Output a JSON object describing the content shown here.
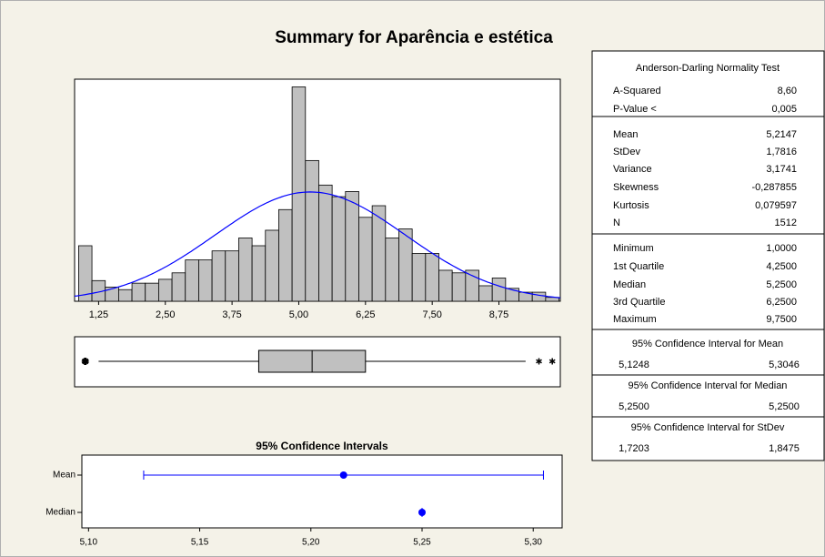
{
  "title": "Summary for Aparência e estética",
  "chart_data": [
    {
      "type": "histogram",
      "bins": [
        0.875,
        1.125,
        1.375,
        1.625,
        1.875,
        2.125,
        2.375,
        2.625,
        2.875,
        3.125,
        3.375,
        3.625,
        3.875,
        4.125,
        4.375,
        4.625,
        4.875,
        5.125,
        5.375,
        5.625,
        5.875,
        6.125,
        6.375,
        6.625,
        6.875,
        7.125,
        7.375,
        7.625,
        7.875,
        8.125,
        8.375,
        8.625,
        8.875,
        9.125,
        9.375,
        9.625,
        9.875
      ],
      "counts": [
        43,
        16,
        11,
        9,
        14,
        14,
        17,
        22,
        32,
        32,
        39,
        39,
        49,
        43,
        55,
        71,
        166,
        109,
        90,
        81,
        85,
        65,
        74,
        49,
        56,
        37,
        37,
        24,
        22,
        24,
        12,
        18,
        10,
        7,
        7,
        3
      ],
      "color": "#c0c0c0",
      "curve_color": "#0000ff",
      "xlim": [
        0.8,
        9.9
      ],
      "ylim": [
        0,
        172
      ],
      "xticks": [
        {
          "value": 1.25,
          "label": "1,25"
        },
        {
          "value": 2.5,
          "label": "2,50"
        },
        {
          "value": 3.75,
          "label": "3,75"
        },
        {
          "value": 5.0,
          "label": "5,00"
        },
        {
          "value": 6.25,
          "label": "6,25"
        },
        {
          "value": 7.5,
          "label": "7,50"
        },
        {
          "value": 8.75,
          "label": "8,75"
        }
      ]
    },
    {
      "type": "box",
      "color": "#c0c0c0",
      "whisker_low": 1.25,
      "whisker_high": 9.25,
      "outliers": [
        1.0,
        9.5,
        9.75
      ]
    },
    {
      "type": "interval",
      "title": "95% Confidence Intervals",
      "color": "#0000ff",
      "categories": [
        "Mean",
        "Median"
      ],
      "xlim": [
        5.097,
        5.313
      ],
      "xticks": [
        {
          "value": 5.1,
          "label": "5,10"
        },
        {
          "value": 5.15,
          "label": "5,15"
        },
        {
          "value": 5.2,
          "label": "5,20"
        },
        {
          "value": 5.25,
          "label": "5,25"
        },
        {
          "value": 5.3,
          "label": "5,30"
        }
      ]
    }
  ],
  "stats": {
    "title": "Anderson-Darling Normality Test",
    "sections": [
      [
        {
          "name": "A-Squared",
          "value": {
            "value": 8.6,
            "label": "8,60"
          }
        },
        {
          "name": "P-Value <",
          "value": {
            "value": 0.005,
            "label": "0,005"
          }
        }
      ],
      [
        {
          "name": "Mean",
          "value": {
            "value": 5.2147,
            "label": "5,2147"
          }
        },
        {
          "name": "StDev",
          "value": {
            "value": 1.7816,
            "label": "1,7816"
          }
        },
        {
          "name": "Variance",
          "value": {
            "value": 3.1741,
            "label": "3,1741"
          }
        },
        {
          "name": "Skewness",
          "value": {
            "value": -0.287855,
            "label": "-0,287855"
          }
        },
        {
          "name": "Kurtosis",
          "value": {
            "value": 0.079597,
            "label": "0,079597"
          }
        },
        {
          "name": "N",
          "value": 1512
        }
      ],
      [
        {
          "name": "Minimum",
          "value": {
            "value": 1.0,
            "label": "1,0000"
          }
        },
        {
          "name": "1st Quartile",
          "value": {
            "value": 4.25,
            "label": "4,2500"
          }
        },
        {
          "name": "Median",
          "value": {
            "value": 5.25,
            "label": "5,2500"
          }
        },
        {
          "name": "3rd Quartile",
          "value": {
            "value": 6.25,
            "label": "6,2500"
          }
        },
        {
          "name": "Maximum",
          "value": {
            "value": 9.75,
            "label": "9,7500"
          }
        }
      ]
    ],
    "intervals": [
      {
        "title": "95% Confidence Interval for Mean",
        "low": {
          "value": 5.1248,
          "label": "5,1248"
        },
        "high": {
          "value": 5.3046,
          "label": "5,3046"
        }
      },
      {
        "title": "95% Confidence Interval for Median",
        "low": {
          "value": 5.25,
          "label": "5,2500"
        },
        "high": {
          "value": 5.25,
          "label": "5,2500"
        }
      },
      {
        "title": "95% Confidence Interval for StDev",
        "low": {
          "value": 1.7203,
          "label": "1,7203"
        },
        "high": {
          "value": 1.8475,
          "label": "1,8475"
        }
      }
    ]
  }
}
